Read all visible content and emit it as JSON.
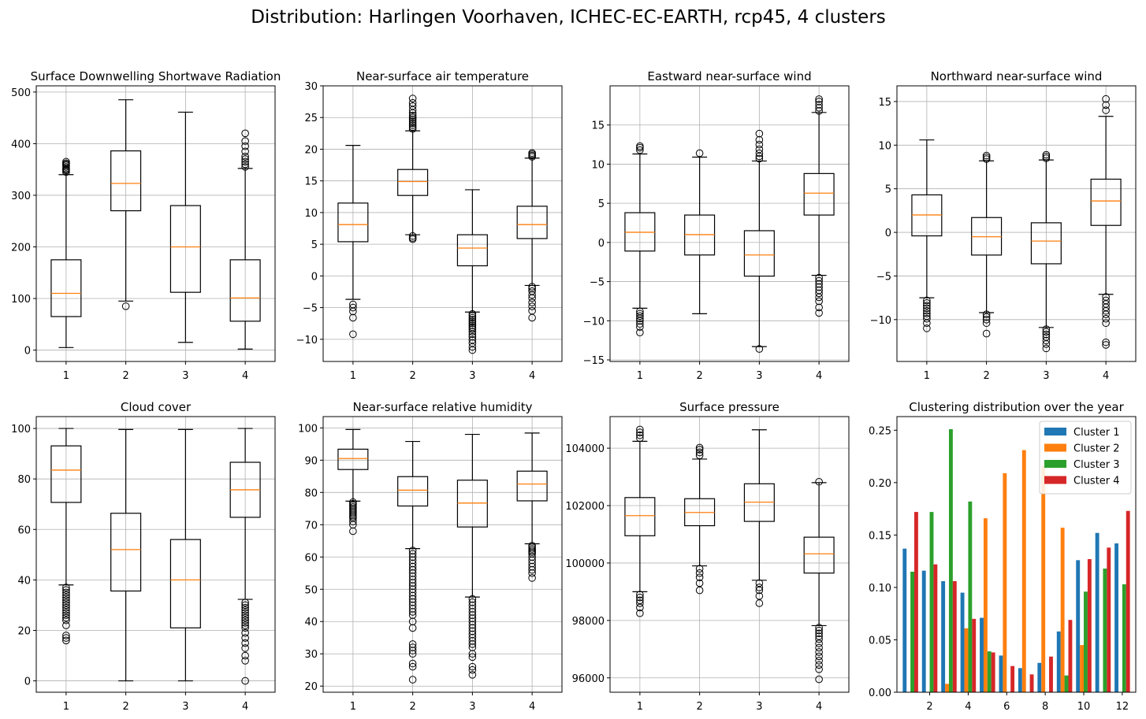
{
  "figure": {
    "suptitle": "Distribution: Harlingen Voorhaven, ICHEC-EC-EARTH, rcp45, 4 clusters"
  },
  "chart_data": [
    {
      "type": "boxplot",
      "title": "Surface Downwelling Shortwave Radiation",
      "categories": [
        "1",
        "2",
        "3",
        "4"
      ],
      "ylim": [
        -22,
        512
      ],
      "yticks": [
        0,
        100,
        200,
        300,
        400,
        500
      ],
      "grid": true,
      "boxes": [
        {
          "whislo": 5,
          "q1": 65,
          "med": 110,
          "q3": 175,
          "whishi": 340,
          "fliers": [
            345,
            348,
            350,
            352,
            355,
            358,
            360,
            362,
            365
          ]
        },
        {
          "whislo": 95,
          "q1": 270,
          "med": 323,
          "q3": 386,
          "whishi": 485,
          "fliers": [
            85
          ]
        },
        {
          "whislo": 15,
          "q1": 112,
          "med": 200,
          "q3": 280,
          "whishi": 461,
          "fliers": []
        },
        {
          "whislo": 2,
          "q1": 56,
          "med": 101,
          "q3": 175,
          "whishi": 352,
          "fliers": [
            355,
            360,
            365,
            370,
            375,
            385,
            395,
            405,
            420
          ]
        }
      ]
    },
    {
      "type": "boxplot",
      "title": "Near-surface air temperature",
      "categories": [
        "1",
        "2",
        "3",
        "4"
      ],
      "ylim": [
        -13.5,
        30
      ],
      "yticks": [
        -10,
        -5,
        0,
        5,
        10,
        15,
        20,
        25,
        30
      ],
      "grid": true,
      "boxes": [
        {
          "whislo": -3.7,
          "q1": 5.4,
          "med": 8.1,
          "q3": 11.5,
          "whishi": 20.6,
          "fliers": [
            -4.5,
            -5.0,
            -5.6,
            -6.6,
            -9.2
          ]
        },
        {
          "whislo": 6.5,
          "q1": 12.7,
          "med": 14.9,
          "q3": 16.8,
          "whishi": 22.9,
          "fliers": [
            23.2,
            23.5,
            23.8,
            24.1,
            24.4,
            24.7,
            25.0,
            25.3,
            25.7,
            26.2,
            26.8,
            27.3,
            28.0,
            6.3,
            6.0,
            5.8
          ]
        },
        {
          "whislo": -5.7,
          "q1": 1.6,
          "med": 4.4,
          "q3": 6.5,
          "whishi": 13.6,
          "fliers": [
            -6.0,
            -6.3,
            -6.6,
            -6.9,
            -7.2,
            -7.5,
            -7.8,
            -8.1,
            -8.4,
            -8.8,
            -9.2,
            -9.6,
            -10.1,
            -10.6,
            -11.2,
            -11.7
          ]
        },
        {
          "whislo": -1.5,
          "q1": 5.9,
          "med": 8.1,
          "q3": 11.0,
          "whishi": 18.6,
          "fliers": [
            18.8,
            19.0,
            19.2,
            19.4,
            -1.7,
            -2.0,
            -2.4,
            -3.0,
            -3.5,
            -4.2,
            -4.8,
            -5.5,
            -6.6
          ]
        }
      ]
    },
    {
      "type": "boxplot",
      "title": "Eastward near-surface wind",
      "categories": [
        "1",
        "2",
        "3",
        "4"
      ],
      "ylim": [
        -15.2,
        20
      ],
      "yticks": [
        -15,
        -10,
        -5,
        0,
        5,
        10,
        15
      ],
      "grid": true,
      "boxes": [
        {
          "whislo": -8.4,
          "q1": -1.1,
          "med": 1.3,
          "q3": 3.8,
          "whishi": 11.3,
          "fliers": [
            11.8,
            12.1,
            12.3,
            -8.8,
            -9.1,
            -9.4,
            -9.7,
            -10.0,
            -10.4,
            -10.8,
            -11.5
          ]
        },
        {
          "whislo": -9.1,
          "q1": -1.6,
          "med": 1.0,
          "q3": 3.5,
          "whishi": 10.9,
          "fliers": [
            11.4
          ]
        },
        {
          "whislo": -13.3,
          "q1": -4.3,
          "med": -1.6,
          "q3": 1.5,
          "whishi": 10.4,
          "fliers": [
            10.7,
            11.0,
            11.4,
            11.9,
            12.5,
            13.1,
            13.9,
            -13.6
          ]
        },
        {
          "whislo": -4.2,
          "q1": 3.5,
          "med": 6.3,
          "q3": 8.8,
          "whishi": 16.6,
          "fliers": [
            16.8,
            17.2,
            17.6,
            18.0,
            18.3,
            -4.5,
            -4.9,
            -5.3,
            -5.7,
            -6.1,
            -6.5,
            -7.0,
            -7.5,
            -8.3,
            -9.0
          ]
        }
      ]
    },
    {
      "type": "boxplot",
      "title": "Northward near-surface wind",
      "categories": [
        "1",
        "2",
        "3",
        "4"
      ],
      "ylim": [
        -14.8,
        16.8
      ],
      "yticks": [
        -10,
        -5,
        0,
        5,
        10,
        15
      ],
      "grid": true,
      "boxes": [
        {
          "whislo": -7.5,
          "q1": -0.4,
          "med": 2.0,
          "q3": 4.3,
          "whishi": 10.6,
          "fliers": [
            -7.8,
            -8.1,
            -8.4,
            -8.7,
            -9.0,
            -9.3,
            -9.6,
            -9.9,
            -10.4,
            -11.0
          ]
        },
        {
          "whislo": -9.2,
          "q1": -2.6,
          "med": -0.5,
          "q3": 1.7,
          "whishi": 8.2,
          "fliers": [
            8.4,
            8.6,
            8.8,
            -9.4,
            -9.7,
            -10.0,
            -10.4,
            -11.6
          ]
        },
        {
          "whislo": -10.9,
          "q1": -3.6,
          "med": -1.0,
          "q3": 1.1,
          "whishi": 8.3,
          "fliers": [
            8.5,
            8.7,
            8.9,
            -11.1,
            -11.4,
            -11.7,
            -12.0,
            -12.4,
            -12.8,
            -13.3
          ]
        },
        {
          "whislo": -7.1,
          "q1": 0.8,
          "med": 3.6,
          "q3": 6.1,
          "whishi": 13.3,
          "fliers": [
            14.0,
            14.6,
            15.3,
            -7.4,
            -7.8,
            -8.2,
            -8.6,
            -9.0,
            -9.4,
            -9.9,
            -10.4,
            -12.6,
            -12.9
          ]
        }
      ]
    },
    {
      "type": "boxplot",
      "title": "Cloud cover",
      "categories": [
        "1",
        "2",
        "3",
        "4"
      ],
      "ylim": [
        -4.5,
        104.7
      ],
      "yticks": [
        0,
        20,
        40,
        60,
        80,
        100
      ],
      "grid": true,
      "boxes": [
        {
          "whislo": 38,
          "q1": 70.7,
          "med": 83.5,
          "q3": 93.1,
          "whishi": 100,
          "fliers": [
            37,
            36,
            35,
            34,
            33,
            32,
            31,
            30,
            29,
            28,
            27,
            26,
            25,
            24,
            22,
            18,
            17,
            16
          ]
        },
        {
          "whislo": 0,
          "q1": 35.6,
          "med": 52.0,
          "q3": 66.4,
          "whishi": 99.6,
          "fliers": []
        },
        {
          "whislo": 0,
          "q1": 21.0,
          "med": 40.0,
          "q3": 56.0,
          "whishi": 99.6,
          "fliers": []
        },
        {
          "whislo": 32.3,
          "q1": 64.8,
          "med": 75.7,
          "q3": 86.6,
          "whishi": 100,
          "fliers": [
            31,
            30,
            29,
            28,
            27,
            26,
            25,
            24,
            23,
            22,
            21,
            19,
            17,
            15,
            13,
            10,
            8,
            0
          ]
        }
      ]
    },
    {
      "type": "boxplot",
      "title": "Near-surface relative humidity",
      "categories": [
        "1",
        "2",
        "3",
        "4"
      ],
      "ylim": [
        18.1,
        103.5
      ],
      "yticks": [
        20,
        30,
        40,
        50,
        60,
        70,
        80,
        90,
        100
      ],
      "grid": true,
      "boxes": [
        {
          "whislo": 77.3,
          "q1": 87.1,
          "med": 90.5,
          "q3": 93.4,
          "whishi": 99.5,
          "fliers": [
            77,
            76.5,
            76,
            75.5,
            75,
            74.5,
            74,
            73.5,
            73,
            72.5,
            72,
            71,
            70,
            68
          ]
        },
        {
          "whislo": 62.6,
          "q1": 75.8,
          "med": 80.7,
          "q3": 84.9,
          "whishi": 95.8,
          "fliers": [
            62,
            61,
            60,
            59,
            58,
            57,
            56,
            55,
            54,
            53,
            52,
            51,
            50,
            49,
            48,
            47,
            46,
            45,
            44,
            43,
            42,
            40,
            38,
            33,
            32,
            31,
            30,
            27,
            26,
            22
          ]
        },
        {
          "whislo": 47.6,
          "q1": 69.3,
          "med": 76.7,
          "q3": 83.8,
          "whishi": 98.0,
          "fliers": [
            47,
            46,
            45,
            44,
            43,
            42,
            41,
            40,
            39,
            38,
            37,
            36,
            35,
            34,
            33,
            32,
            30,
            29,
            26,
            25,
            23.5
          ]
        },
        {
          "whislo": 64.1,
          "q1": 77.4,
          "med": 82.6,
          "q3": 86.6,
          "whishi": 98.4,
          "fliers": [
            63.5,
            63,
            62.5,
            62,
            61.5,
            61,
            60,
            59,
            58,
            57,
            56,
            55,
            53.5
          ]
        }
      ]
    },
    {
      "type": "boxplot",
      "title": "Surface pressure",
      "categories": [
        "1",
        "2",
        "3",
        "4"
      ],
      "ylim": [
        95500,
        105100
      ],
      "yticks": [
        96000,
        98000,
        100000,
        102000,
        104000
      ],
      "grid": true,
      "boxes": [
        {
          "whislo": 99000,
          "q1": 100950,
          "med": 101650,
          "q3": 102280,
          "whishi": 104240,
          "fliers": [
            104350,
            104450,
            104550,
            104650,
            98900,
            98800,
            98700,
            98600,
            98450,
            98250
          ]
        },
        {
          "whislo": 99900,
          "q1": 101300,
          "med": 101760,
          "q3": 102240,
          "whishi": 103620,
          "fliers": [
            103750,
            103850,
            103950,
            104020,
            99800,
            99650,
            99500,
            99300,
            99050
          ]
        },
        {
          "whislo": 99400,
          "q1": 101450,
          "med": 102120,
          "q3": 102760,
          "whishi": 104640,
          "fliers": [
            99300,
            99150,
            99050,
            98850,
            98600
          ]
        },
        {
          "whislo": 97820,
          "q1": 99650,
          "med": 100320,
          "q3": 100900,
          "whishi": 102800,
          "fliers": [
            102830,
            97750,
            97650,
            97550,
            97450,
            97350,
            97200,
            97050,
            96900,
            96750,
            96600,
            96450,
            96300,
            95950
          ]
        }
      ]
    },
    {
      "type": "bar",
      "title": "Clustering distribution over the year",
      "categories": [
        1,
        2,
        3,
        4,
        5,
        6,
        7,
        8,
        9,
        10,
        11,
        12
      ],
      "xticks": [
        2,
        4,
        6,
        8,
        10,
        12
      ],
      "ylim": [
        0,
        0.263
      ],
      "yticks": [
        0.0,
        0.05,
        0.1,
        0.15,
        0.2,
        0.25
      ],
      "ytick_labels": [
        "0.00",
        "0.05",
        "0.10",
        "0.15",
        "0.20",
        "0.25"
      ],
      "legend_position": "top-right",
      "series": [
        {
          "name": "Cluster 1",
          "color": "#1f77b4",
          "values": [
            0.137,
            0.116,
            0.106,
            0.095,
            0.071,
            0.035,
            0.023,
            0.028,
            0.058,
            0.126,
            0.152,
            0.142
          ]
        },
        {
          "name": "Cluster 2",
          "color": "#ff7f0e",
          "values": [
            0.0,
            0.0,
            0.008,
            0.061,
            0.166,
            0.209,
            0.231,
            0.216,
            0.157,
            0.045,
            0.0,
            0.0
          ]
        },
        {
          "name": "Cluster 3",
          "color": "#2ca02c",
          "values": [
            0.115,
            0.172,
            0.251,
            0.182,
            0.039,
            0.0,
            0.0,
            0.0,
            0.016,
            0.096,
            0.118,
            0.103
          ]
        },
        {
          "name": "Cluster 4",
          "color": "#d62728",
          "values": [
            0.172,
            0.122,
            0.106,
            0.07,
            0.038,
            0.025,
            0.017,
            0.034,
            0.069,
            0.127,
            0.138,
            0.173
          ]
        }
      ]
    }
  ]
}
